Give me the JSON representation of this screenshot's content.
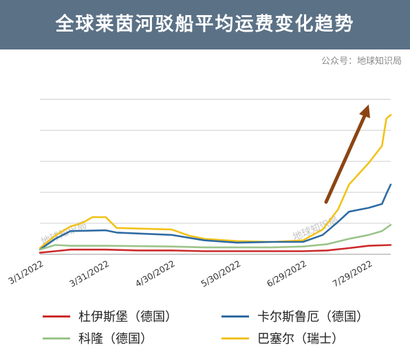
{
  "header": {
    "title": "全球莱茵河驳船平均运费变化趋势",
    "source": "公众号：地球知识局"
  },
  "watermark_text": "地球知识局",
  "chart_data": {
    "type": "line",
    "title": "全球莱茵河驳船平均运费变化趋势",
    "xlabel": "",
    "ylabel": "",
    "x_ticks": [
      "3/1/2022",
      "3/31/2022",
      "4/30/2022",
      "5/30/2022",
      "6/29/2022",
      "7/29/2022"
    ],
    "x_range": [
      "2022-03-01",
      "2022-08-08"
    ],
    "y_axis_labels_shown": false,
    "ylim": [
      0,
      220
    ],
    "y_gridlines": [
      0,
      40,
      80,
      120,
      160,
      200
    ],
    "grid": "horizontal",
    "legend_position": "bottom",
    "annotation": "upward-arrow",
    "series": [
      {
        "name": "杜伊斯堡（德国）",
        "color": "#cc2a2a",
        "points": [
          [
            "2022-03-01",
            2
          ],
          [
            "2022-03-08",
            4
          ],
          [
            "2022-03-15",
            6
          ],
          [
            "2022-03-31",
            6
          ],
          [
            "2022-04-15",
            5
          ],
          [
            "2022-04-30",
            5
          ],
          [
            "2022-05-15",
            4
          ],
          [
            "2022-05-30",
            4
          ],
          [
            "2022-06-15",
            4
          ],
          [
            "2022-06-29",
            4
          ],
          [
            "2022-07-10",
            5
          ],
          [
            "2022-07-20",
            8
          ],
          [
            "2022-07-29",
            11
          ],
          [
            "2022-08-08",
            12
          ]
        ]
      },
      {
        "name": "卡尔斯鲁厄（德国）",
        "color": "#2f6ba3",
        "points": [
          [
            "2022-03-01",
            6
          ],
          [
            "2022-03-08",
            20
          ],
          [
            "2022-03-15",
            30
          ],
          [
            "2022-03-31",
            31
          ],
          [
            "2022-04-05",
            28
          ],
          [
            "2022-04-30",
            25
          ],
          [
            "2022-05-15",
            18
          ],
          [
            "2022-05-30",
            15
          ],
          [
            "2022-06-15",
            16
          ],
          [
            "2022-06-29",
            16
          ],
          [
            "2022-07-08",
            25
          ],
          [
            "2022-07-15",
            42
          ],
          [
            "2022-07-20",
            55
          ],
          [
            "2022-07-29",
            60
          ],
          [
            "2022-08-04",
            65
          ],
          [
            "2022-08-06",
            78
          ],
          [
            "2022-08-08",
            90
          ]
        ]
      },
      {
        "name": "科隆（德国）",
        "color": "#9cc48a",
        "points": [
          [
            "2022-03-01",
            6
          ],
          [
            "2022-03-08",
            12
          ],
          [
            "2022-03-15",
            11
          ],
          [
            "2022-03-31",
            11
          ],
          [
            "2022-04-30",
            10
          ],
          [
            "2022-05-15",
            9
          ],
          [
            "2022-05-30",
            9
          ],
          [
            "2022-06-15",
            9
          ],
          [
            "2022-06-29",
            10
          ],
          [
            "2022-07-10",
            13
          ],
          [
            "2022-07-20",
            20
          ],
          [
            "2022-07-29",
            25
          ],
          [
            "2022-08-04",
            30
          ],
          [
            "2022-08-08",
            38
          ]
        ]
      },
      {
        "name": "巴塞尔（瑞士）",
        "color": "#f2c218",
        "points": [
          [
            "2022-03-01",
            8
          ],
          [
            "2022-03-08",
            24
          ],
          [
            "2022-03-15",
            36
          ],
          [
            "2022-03-20",
            40
          ],
          [
            "2022-03-25",
            48
          ],
          [
            "2022-03-31",
            48
          ],
          [
            "2022-04-05",
            34
          ],
          [
            "2022-04-30",
            32
          ],
          [
            "2022-05-08",
            24
          ],
          [
            "2022-05-15",
            20
          ],
          [
            "2022-05-30",
            17
          ],
          [
            "2022-06-15",
            16
          ],
          [
            "2022-06-29",
            18
          ],
          [
            "2022-07-08",
            32
          ],
          [
            "2022-07-15",
            58
          ],
          [
            "2022-07-20",
            90
          ],
          [
            "2022-07-29",
            118
          ],
          [
            "2022-08-04",
            140
          ],
          [
            "2022-08-06",
            175
          ],
          [
            "2022-08-08",
            180
          ]
        ]
      }
    ]
  }
}
